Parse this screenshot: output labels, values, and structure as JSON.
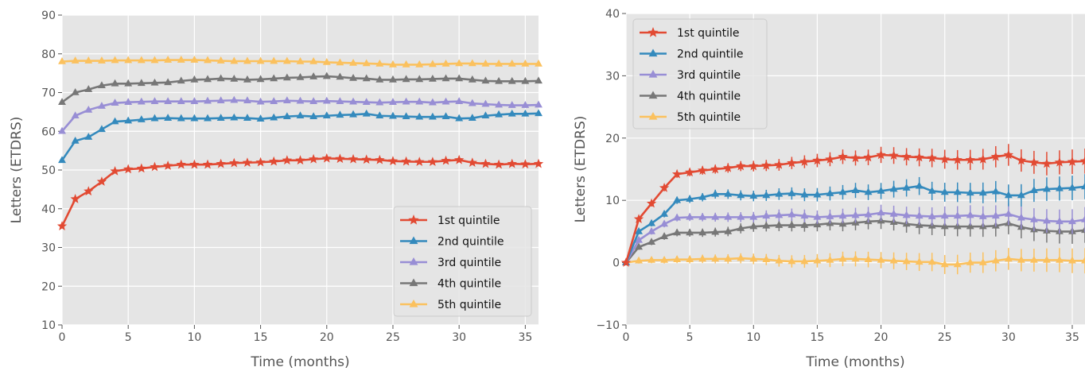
{
  "chart_data": [
    {
      "type": "line",
      "title": "",
      "xlabel": "Time (months)",
      "ylabel": "Letters (ETDRS)",
      "xlim": [
        0,
        36
      ],
      "ylim": [
        10,
        90
      ],
      "xticks": [
        0,
        5,
        10,
        15,
        20,
        25,
        30,
        35
      ],
      "yticks": [
        10,
        20,
        30,
        40,
        50,
        60,
        70,
        80,
        90
      ],
      "grid": true,
      "legend_position": "lower-right",
      "x": [
        0,
        1,
        2,
        3,
        4,
        5,
        6,
        7,
        8,
        9,
        10,
        11,
        12,
        13,
        14,
        15,
        16,
        17,
        18,
        19,
        20,
        21,
        22,
        23,
        24,
        25,
        26,
        27,
        28,
        29,
        30,
        31,
        32,
        33,
        34,
        35,
        36
      ],
      "series": [
        {
          "name": "1st quintile",
          "color": "#E24A33",
          "marker": "star",
          "values": [
            35.5,
            42.5,
            44.5,
            47,
            49.7,
            50.2,
            50.4,
            50.8,
            51.1,
            51.4,
            51.4,
            51.4,
            51.6,
            51.8,
            51.9,
            52,
            52.2,
            52.5,
            52.5,
            52.8,
            53,
            52.9,
            52.8,
            52.7,
            52.6,
            52.3,
            52.2,
            52.1,
            52.1,
            52.4,
            52.6,
            51.9,
            51.6,
            51.4,
            51.6,
            51.5,
            51.6
          ]
        },
        {
          "name": "2nd quintile",
          "color": "#348ABD",
          "marker": "triangle",
          "values": [
            52.5,
            57.5,
            58.5,
            60.5,
            62.5,
            62.7,
            63,
            63.3,
            63.4,
            63.3,
            63.3,
            63.3,
            63.4,
            63.5,
            63.4,
            63.2,
            63.5,
            63.8,
            64,
            63.8,
            64,
            64.2,
            64.3,
            64.5,
            64,
            63.9,
            63.8,
            63.7,
            63.7,
            63.8,
            63.3,
            63.4,
            64,
            64.3,
            64.5,
            64.5,
            64.6
          ]
        },
        {
          "name": "3rd quintile",
          "color": "#988ED5",
          "marker": "triangle",
          "values": [
            60,
            64,
            65.5,
            66.5,
            67.3,
            67.5,
            67.6,
            67.7,
            67.7,
            67.7,
            67.7,
            67.8,
            67.9,
            68,
            67.9,
            67.6,
            67.7,
            67.9,
            67.8,
            67.7,
            67.8,
            67.7,
            67.6,
            67.5,
            67.4,
            67.5,
            67.6,
            67.6,
            67.4,
            67.6,
            67.7,
            67.2,
            67,
            66.8,
            66.7,
            66.7,
            66.8
          ]
        },
        {
          "name": "4th quintile",
          "color": "#777777",
          "marker": "triangle",
          "values": [
            67.5,
            70,
            70.8,
            71.8,
            72.3,
            72.3,
            72.4,
            72.5,
            72.6,
            73,
            73.3,
            73.4,
            73.6,
            73.5,
            73.3,
            73.4,
            73.6,
            73.8,
            73.9,
            74.1,
            74.2,
            74,
            73.7,
            73.6,
            73.3,
            73.3,
            73.4,
            73.4,
            73.5,
            73.6,
            73.6,
            73.3,
            73,
            72.9,
            72.9,
            72.9,
            73
          ]
        },
        {
          "name": "5th quintile",
          "color": "#FBC15E",
          "marker": "triangle",
          "values": [
            78,
            78.2,
            78.2,
            78.2,
            78.3,
            78.3,
            78.3,
            78.3,
            78.4,
            78.4,
            78.4,
            78.3,
            78.2,
            78.1,
            78.1,
            78.1,
            78.1,
            78.1,
            78,
            78,
            77.8,
            77.7,
            77.6,
            77.5,
            77.4,
            77.2,
            77.2,
            77.2,
            77.3,
            77.4,
            77.5,
            77.5,
            77.4,
            77.4,
            77.4,
            77.4,
            77.4
          ]
        }
      ]
    },
    {
      "type": "line",
      "title": "",
      "xlabel": "Time (months)",
      "ylabel": "Letters (ETDRS)",
      "xlim": [
        0,
        36
      ],
      "ylim": [
        -10,
        40
      ],
      "xticks": [
        0,
        5,
        10,
        15,
        20,
        25,
        30,
        35
      ],
      "yticks": [
        -10,
        0,
        10,
        20,
        30,
        40
      ],
      "grid": true,
      "legend_position": "upper-left",
      "error_bars": true,
      "x": [
        0,
        1,
        2,
        3,
        4,
        5,
        6,
        7,
        8,
        9,
        10,
        11,
        12,
        13,
        14,
        15,
        16,
        17,
        18,
        19,
        20,
        21,
        22,
        23,
        24,
        25,
        26,
        27,
        28,
        29,
        30,
        31,
        32,
        33,
        34,
        35,
        36
      ],
      "series": [
        {
          "name": "1st quintile",
          "color": "#E24A33",
          "marker": "star",
          "values": [
            0,
            7,
            9.5,
            12,
            14.2,
            14.5,
            14.8,
            15,
            15.2,
            15.5,
            15.5,
            15.6,
            15.7,
            16,
            16.2,
            16.4,
            16.6,
            17,
            16.8,
            16.9,
            17.3,
            17.2,
            17,
            16.9,
            16.8,
            16.6,
            16.5,
            16.5,
            16.6,
            17,
            17.3,
            16.4,
            16.1,
            15.9,
            16.1,
            16.2,
            16.3
          ]
        },
        {
          "name": "2nd quintile",
          "color": "#348ABD",
          "marker": "triangle",
          "values": [
            0,
            5,
            6.3,
            7.8,
            10,
            10.2,
            10.5,
            11,
            11,
            10.8,
            10.7,
            10.8,
            11,
            11.1,
            10.9,
            10.9,
            11.1,
            11.3,
            11.6,
            11.3,
            11.5,
            11.8,
            12,
            12.3,
            11.5,
            11.3,
            11.3,
            11.2,
            11.2,
            11.4,
            10.8,
            10.8,
            11.6,
            11.8,
            11.9,
            12,
            12.2
          ]
        },
        {
          "name": "3rd quintile",
          "color": "#988ED5",
          "marker": "triangle",
          "values": [
            0,
            3.6,
            5,
            6.2,
            7.2,
            7.3,
            7.3,
            7.3,
            7.3,
            7.3,
            7.3,
            7.5,
            7.6,
            7.7,
            7.5,
            7.3,
            7.4,
            7.5,
            7.6,
            7.7,
            8,
            7.8,
            7.6,
            7.5,
            7.4,
            7.5,
            7.5,
            7.6,
            7.4,
            7.5,
            7.8,
            7.2,
            6.9,
            6.7,
            6.6,
            6.6,
            6.9
          ]
        },
        {
          "name": "4th quintile",
          "color": "#777777",
          "marker": "triangle",
          "values": [
            0,
            2.5,
            3.3,
            4.2,
            4.8,
            4.8,
            4.8,
            4.9,
            5,
            5.5,
            5.8,
            5.9,
            6,
            6,
            6,
            6.1,
            6.3,
            6.2,
            6.4,
            6.6,
            6.7,
            6.5,
            6.2,
            6,
            5.9,
            5.8,
            5.8,
            5.8,
            5.8,
            5.9,
            6.3,
            5.7,
            5.3,
            5.1,
            5,
            5,
            5.2
          ]
        },
        {
          "name": "5th quintile",
          "color": "#FBC15E",
          "marker": "triangle",
          "values": [
            0,
            0.3,
            0.4,
            0.4,
            0.5,
            0.5,
            0.6,
            0.6,
            0.6,
            0.7,
            0.6,
            0.5,
            0.3,
            0.2,
            0.2,
            0.3,
            0.4,
            0.6,
            0.6,
            0.5,
            0.4,
            0.3,
            0.2,
            0.1,
            0.1,
            -0.3,
            -0.3,
            0,
            0,
            0.3,
            0.6,
            0.4,
            0.4,
            0.4,
            0.4,
            0.3,
            0.3
          ]
        }
      ]
    }
  ]
}
